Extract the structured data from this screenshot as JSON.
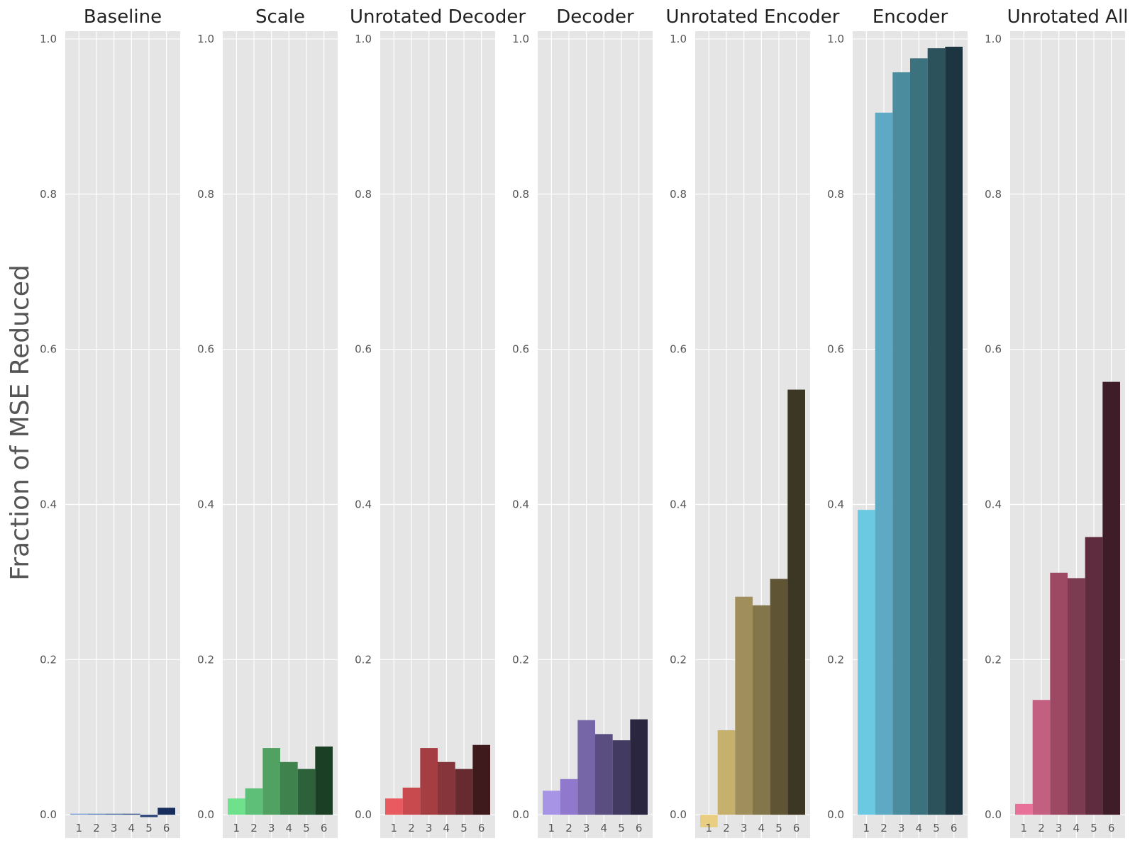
{
  "figure": {
    "ylabel": "Fraction of MSE Reduced"
  },
  "chart_data": [
    {
      "type": "bar",
      "title": "Baseline",
      "categories": [
        "1",
        "2",
        "3",
        "4",
        "5",
        "6"
      ],
      "values": [
        0.001,
        0.001,
        0.0005,
        0.0,
        -0.003,
        0.009
      ],
      "colors": [
        "#7b9dd6",
        "#6787c0",
        "#5470a8",
        "#405a8f",
        "#2c4376",
        "#172d5c"
      ],
      "ylim": [
        -0.03,
        1.01
      ],
      "yticks": [
        0.0,
        0.2,
        0.4,
        0.6,
        0.8,
        1.0
      ],
      "grid": true
    },
    {
      "type": "bar",
      "title": "Scale",
      "categories": [
        "1",
        "2",
        "3",
        "4",
        "5",
        "6"
      ],
      "values": [
        0.021,
        0.034,
        0.086,
        0.068,
        0.059,
        0.088
      ],
      "colors": [
        "#6fe08c",
        "#5ec078",
        "#51a262",
        "#3f824d",
        "#2c6139",
        "#1b3f24"
      ],
      "ylim": [
        -0.03,
        1.01
      ],
      "yticks": [
        0.0,
        0.2,
        0.4,
        0.6,
        0.8,
        1.0
      ],
      "grid": true
    },
    {
      "type": "bar",
      "title": "Unrotated Decoder",
      "categories": [
        "1",
        "2",
        "3",
        "4",
        "5",
        "6"
      ],
      "values": [
        0.021,
        0.035,
        0.086,
        0.068,
        0.059,
        0.09
      ],
      "colors": [
        "#e85a5f",
        "#c84a4f",
        "#a53e43",
        "#86353a",
        "#672a2e",
        "#3f1a1c"
      ],
      "ylim": [
        -0.03,
        1.01
      ],
      "yticks": [
        0.0,
        0.2,
        0.4,
        0.6,
        0.8,
        1.0
      ],
      "grid": true
    },
    {
      "type": "bar",
      "title": "Decoder",
      "categories": [
        "1",
        "2",
        "3",
        "4",
        "5",
        "6"
      ],
      "values": [
        0.031,
        0.046,
        0.122,
        0.104,
        0.096,
        0.123
      ],
      "colors": [
        "#a894e4",
        "#9079cd",
        "#7666a8",
        "#5a4d80",
        "#433a61",
        "#2a2640"
      ],
      "ylim": [
        -0.03,
        1.01
      ],
      "yticks": [
        0.0,
        0.2,
        0.4,
        0.6,
        0.8,
        1.0
      ],
      "grid": true
    },
    {
      "type": "bar",
      "title": "Unrotated Encoder",
      "categories": [
        "1",
        "2",
        "3",
        "4",
        "5",
        "6"
      ],
      "values": [
        -0.016,
        0.109,
        0.281,
        0.27,
        0.304,
        0.548
      ],
      "colors": [
        "#e9cd80",
        "#c6b06e",
        "#a08e5c",
        "#82764a",
        "#5f5534",
        "#3c3624"
      ],
      "ylim": [
        -0.03,
        1.01
      ],
      "yticks": [
        0.0,
        0.2,
        0.4,
        0.6,
        0.8,
        1.0
      ],
      "grid": true
    },
    {
      "type": "bar",
      "title": "Encoder",
      "categories": [
        "1",
        "2",
        "3",
        "4",
        "5",
        "6"
      ],
      "values": [
        0.393,
        0.905,
        0.957,
        0.975,
        0.988,
        0.99
      ],
      "colors": [
        "#6cc9e2",
        "#5ea9c4",
        "#4b8c9e",
        "#3c717e",
        "#2c525c",
        "#1d3540"
      ],
      "ylim": [
        -0.03,
        1.01
      ],
      "yticks": [
        0.0,
        0.2,
        0.4,
        0.6,
        0.8,
        1.0
      ],
      "grid": true
    },
    {
      "type": "bar",
      "title": "Unrotated All",
      "categories": [
        "1",
        "2",
        "3",
        "4",
        "5",
        "6"
      ],
      "values": [
        0.014,
        0.148,
        0.312,
        0.305,
        0.358,
        0.558
      ],
      "colors": [
        "#e8719a",
        "#c36081",
        "#9e4964",
        "#7c3b50",
        "#5e2c3e",
        "#3e1c28"
      ],
      "ylim": [
        -0.03,
        1.01
      ],
      "yticks": [
        0.0,
        0.2,
        0.4,
        0.6,
        0.8,
        1.0
      ],
      "grid": true
    }
  ]
}
